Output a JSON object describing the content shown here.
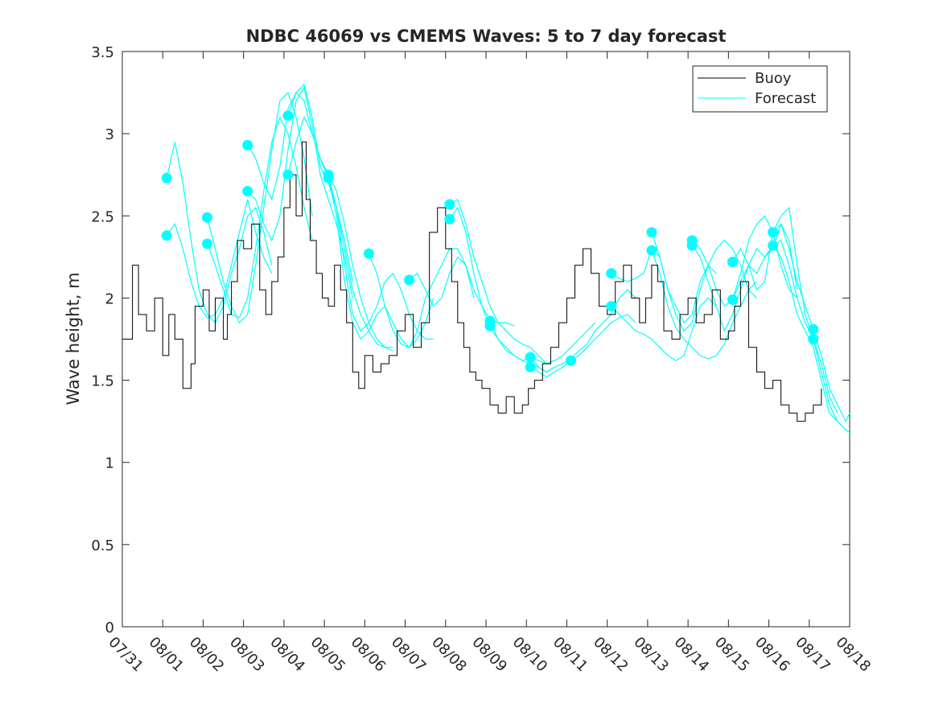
{
  "chart_data": {
    "type": "line",
    "title": "NDBC 46069 vs CMEMS Waves: 5 to 7 day forecast",
    "xlabel": "",
    "ylabel": "Wave height, m",
    "xlim": [
      0,
      18
    ],
    "ylim": [
      0,
      3.5
    ],
    "x_tick_values": [
      0,
      1,
      2,
      3,
      4,
      5,
      6,
      7,
      8,
      9,
      10,
      11,
      12,
      13,
      14,
      15,
      16,
      17,
      18
    ],
    "x_tick_labels": [
      "07/31",
      "08/01",
      "08/02",
      "08/03",
      "08/04",
      "08/05",
      "08/06",
      "08/07",
      "08/08",
      "08/09",
      "08/10",
      "08/11",
      "08/12",
      "08/13",
      "08/14",
      "08/15",
      "08/16",
      "08/17",
      "08/18"
    ],
    "y_tick_values": [
      0,
      0.5,
      1,
      1.5,
      2,
      2.5,
      3,
      3.5
    ],
    "y_tick_labels": [
      "0",
      "0.5",
      "1",
      "1.5",
      "2",
      "2.5",
      "3",
      "3.5"
    ],
    "legend": {
      "position": "top-right",
      "entries": [
        {
          "name": "Buoy",
          "color": "#000000"
        },
        {
          "name": "Forecast",
          "color": "#00ffff"
        }
      ]
    },
    "colors": {
      "buoy": "#000000",
      "forecast": "#00ffff",
      "axes": "#262626"
    },
    "buoy": {
      "name": "Buoy",
      "x": [
        0,
        0.25,
        0.4,
        0.6,
        0.8,
        1.0,
        1.15,
        1.3,
        1.5,
        1.7,
        1.8,
        2.0,
        2.15,
        2.3,
        2.5,
        2.6,
        2.7,
        2.85,
        3.0,
        3.2,
        3.4,
        3.55,
        3.7,
        3.85,
        4.0,
        4.15,
        4.3,
        4.45,
        4.55,
        4.65,
        4.8,
        4.95,
        5.1,
        5.25,
        5.4,
        5.55,
        5.7,
        5.85,
        6.0,
        6.2,
        6.4,
        6.6,
        6.8,
        7.0,
        7.2,
        7.4,
        7.6,
        7.8,
        8.0,
        8.15,
        8.3,
        8.45,
        8.6,
        8.75,
        8.9,
        9.1,
        9.3,
        9.5,
        9.7,
        9.9,
        10.05,
        10.2,
        10.4,
        10.6,
        10.8,
        11.0,
        11.2,
        11.4,
        11.6,
        11.8,
        12.0,
        12.2,
        12.4,
        12.6,
        12.8,
        12.95,
        13.1,
        13.25,
        13.4,
        13.6,
        13.8,
        14.0,
        14.2,
        14.4,
        14.6,
        14.8,
        15.0,
        15.15,
        15.3,
        15.5,
        15.7,
        15.9,
        16.1,
        16.3,
        16.5,
        16.7,
        16.9,
        17.1,
        17.3
      ],
      "y": [
        1.75,
        2.2,
        1.9,
        1.8,
        2.0,
        1.65,
        1.9,
        1.75,
        1.45,
        1.6,
        1.95,
        2.05,
        1.8,
        2.0,
        1.75,
        1.9,
        2.1,
        2.35,
        2.3,
        2.45,
        2.05,
        1.9,
        2.1,
        2.25,
        2.55,
        2.75,
        2.5,
        2.95,
        2.6,
        2.35,
        2.15,
        2.0,
        1.95,
        2.2,
        2.05,
        1.85,
        1.55,
        1.45,
        1.65,
        1.55,
        1.6,
        1.65,
        1.8,
        1.9,
        1.7,
        1.85,
        2.4,
        2.55,
        2.3,
        2.1,
        1.85,
        1.7,
        1.55,
        1.5,
        1.45,
        1.35,
        1.3,
        1.4,
        1.3,
        1.35,
        1.45,
        1.5,
        1.6,
        1.7,
        1.85,
        2.0,
        2.2,
        2.3,
        2.15,
        1.95,
        1.9,
        2.1,
        2.2,
        2.0,
        1.85,
        2.0,
        2.2,
        2.1,
        1.8,
        1.75,
        1.9,
        2.0,
        1.85,
        1.9,
        2.05,
        1.75,
        1.8,
        1.95,
        2.1,
        1.7,
        1.55,
        1.45,
        1.5,
        1.35,
        1.3,
        1.25,
        1.3,
        1.35,
        1.45
      ]
    },
    "forecast_series": [
      {
        "name": "Forecast",
        "x": [
          1.1,
          1.3,
          1.5,
          1.7,
          1.9,
          2.1,
          2.3,
          2.5,
          2.7,
          2.9,
          3.1,
          3.3,
          3.5,
          3.7
        ],
        "y": [
          2.73,
          2.95,
          2.7,
          2.35,
          2.05,
          1.9,
          1.85,
          1.95,
          2.15,
          2.3,
          2.5,
          2.55,
          2.4,
          2.2
        ]
      },
      {
        "name": "Forecast",
        "x": [
          1.1,
          1.3,
          1.5,
          1.7,
          1.9,
          2.1,
          2.3,
          2.5,
          2.7,
          2.9,
          3.1,
          3.3,
          3.5,
          3.7
        ],
        "y": [
          2.38,
          2.45,
          2.3,
          2.1,
          1.95,
          1.88,
          1.9,
          2.0,
          2.2,
          2.4,
          2.6,
          2.4,
          2.25,
          2.15
        ]
      },
      {
        "name": "Forecast",
        "x": [
          2.1,
          2.3,
          2.5,
          2.7,
          2.9,
          3.1,
          3.3,
          3.5,
          3.7,
          3.9,
          4.1,
          4.3,
          4.5,
          4.7
        ],
        "y": [
          2.49,
          2.3,
          2.1,
          1.95,
          1.85,
          1.9,
          2.2,
          2.55,
          2.9,
          3.2,
          3.25,
          3.1,
          2.85,
          2.5
        ]
      },
      {
        "name": "Forecast",
        "x": [
          2.1,
          2.3,
          2.5,
          2.7,
          2.9,
          3.1,
          3.3,
          3.5,
          3.7,
          3.9,
          4.1,
          4.3,
          4.5,
          4.7
        ],
        "y": [
          2.33,
          2.2,
          2.05,
          1.9,
          1.88,
          2.0,
          2.3,
          2.65,
          2.95,
          3.1,
          3.0,
          2.8,
          2.55,
          2.35
        ]
      },
      {
        "name": "Forecast",
        "x": [
          3.1,
          3.3,
          3.5,
          3.7,
          3.9,
          4.1,
          4.3,
          4.5,
          4.7,
          4.9,
          5.1,
          5.3,
          5.5,
          5.7
        ],
        "y": [
          2.93,
          2.85,
          2.7,
          2.6,
          2.8,
          3.15,
          3.25,
          3.3,
          3.1,
          2.8,
          2.7,
          2.55,
          2.35,
          2.1
        ]
      },
      {
        "name": "Forecast",
        "x": [
          3.1,
          3.3,
          3.5,
          3.7,
          3.9,
          4.1,
          4.3,
          4.5,
          4.7,
          4.9,
          5.1,
          5.3,
          5.5,
          5.7
        ],
        "y": [
          2.65,
          2.6,
          2.45,
          2.35,
          2.5,
          2.9,
          3.2,
          3.28,
          3.05,
          2.75,
          2.6,
          2.45,
          2.25,
          2.0
        ]
      },
      {
        "name": "Forecast",
        "x": [
          4.1,
          4.3,
          4.5,
          4.7,
          4.9,
          5.1,
          5.3,
          5.5,
          5.7,
          5.9,
          6.1,
          6.3,
          6.5,
          6.7
        ],
        "y": [
          3.11,
          3.25,
          3.2,
          3.0,
          2.85,
          2.75,
          2.65,
          2.45,
          2.2,
          2.0,
          1.85,
          1.75,
          1.7,
          1.68
        ]
      },
      {
        "name": "Forecast",
        "x": [
          4.1,
          4.3,
          4.5,
          4.7,
          4.9,
          5.1,
          5.3,
          5.5,
          5.7,
          5.9,
          6.1,
          6.3,
          6.5,
          6.7
        ],
        "y": [
          2.75,
          2.95,
          3.1,
          3.0,
          2.85,
          2.72,
          2.55,
          2.3,
          2.05,
          1.9,
          1.8,
          1.72,
          1.7,
          1.7
        ]
      },
      {
        "name": "Forecast",
        "x": [
          5.1,
          5.3,
          5.5,
          5.7,
          5.9,
          6.1,
          6.3,
          6.5,
          6.7,
          6.9,
          7.1,
          7.3,
          7.5,
          7.7
        ],
        "y": [
          2.75,
          2.55,
          2.2,
          1.9,
          1.8,
          1.85,
          1.95,
          2.1,
          2.15,
          2.05,
          1.9,
          1.8,
          1.75,
          1.75
        ]
      },
      {
        "name": "Forecast",
        "x": [
          5.1,
          5.3,
          5.5,
          5.7,
          5.9,
          6.1,
          6.3,
          6.5,
          6.7,
          6.9,
          7.1,
          7.3,
          7.5,
          7.7
        ],
        "y": [
          2.73,
          2.5,
          2.1,
          1.85,
          1.75,
          1.8,
          1.9,
          1.95,
          1.85,
          1.75,
          1.7,
          1.75,
          1.85,
          2.0
        ]
      },
      {
        "name": "Forecast",
        "x": [
          6.1,
          6.3,
          6.5,
          6.7,
          6.9,
          7.1,
          7.3,
          7.5,
          7.7,
          7.9,
          8.1,
          8.3,
          8.5,
          8.7
        ],
        "y": [
          2.27,
          2.15,
          1.95,
          1.8,
          1.72,
          1.7,
          1.8,
          2.0,
          2.1,
          2.2,
          2.3,
          2.3,
          2.2,
          2.0
        ]
      },
      {
        "name": "Forecast",
        "x": [
          7.1,
          7.3,
          7.5,
          7.7,
          7.9,
          8.1,
          8.3,
          8.5,
          8.7,
          8.9,
          9.1,
          9.3,
          9.5,
          9.7
        ],
        "y": [
          2.11,
          2.15,
          2.05,
          1.95,
          2.0,
          2.15,
          2.25,
          2.2,
          2.05,
          1.95,
          1.87,
          1.85,
          1.85,
          1.83
        ]
      },
      {
        "name": "Forecast",
        "x": [
          8.1,
          8.3,
          8.5,
          8.7,
          8.9,
          9.1,
          9.3,
          9.5,
          9.7,
          9.9,
          10.1,
          10.3,
          10.5,
          10.7
        ],
        "y": [
          2.57,
          2.6,
          2.45,
          2.25,
          2.1,
          1.95,
          1.85,
          1.8,
          1.75,
          1.72,
          1.7,
          1.65,
          1.6,
          1.62
        ]
      },
      {
        "name": "Forecast",
        "x": [
          8.1,
          8.3,
          8.5,
          8.7,
          8.9,
          9.1,
          9.3,
          9.5,
          9.7,
          9.9,
          10.1,
          10.3,
          10.5,
          10.7
        ],
        "y": [
          2.48,
          2.55,
          2.4,
          2.15,
          1.95,
          1.82,
          1.75,
          1.7,
          1.65,
          1.62,
          1.6,
          1.58,
          1.55,
          1.58
        ]
      },
      {
        "name": "Forecast",
        "x": [
          9.1,
          9.3,
          9.5,
          9.7,
          9.9,
          10.1,
          10.3,
          10.5,
          10.7,
          10.9,
          11.1,
          11.3,
          11.5,
          11.7
        ],
        "y": [
          1.86,
          1.75,
          1.68,
          1.65,
          1.62,
          1.64,
          1.62,
          1.6,
          1.62,
          1.65,
          1.7,
          1.75,
          1.8,
          1.85
        ]
      },
      {
        "name": "Forecast",
        "x": [
          10.1,
          10.3,
          10.5,
          10.7,
          10.9,
          11.1,
          11.3,
          11.5,
          11.7,
          11.9,
          12.1,
          12.3,
          12.5,
          12.7
        ],
        "y": [
          1.64,
          1.58,
          1.55,
          1.58,
          1.6,
          1.63,
          1.68,
          1.72,
          1.8,
          1.85,
          1.9,
          2.0,
          2.05,
          2.0
        ]
      },
      {
        "name": "Forecast",
        "x": [
          10.1,
          10.3,
          10.5,
          10.7,
          10.9,
          11.1,
          11.3,
          11.5,
          11.7,
          11.9,
          12.1,
          12.3,
          12.5,
          12.7
        ],
        "y": [
          1.58,
          1.55,
          1.52,
          1.55,
          1.58,
          1.62,
          1.65,
          1.7,
          1.75,
          1.8,
          1.85,
          1.88,
          1.9,
          1.85
        ]
      },
      {
        "name": "Forecast",
        "x": [
          12.1,
          12.3,
          12.5,
          12.7,
          12.9,
          13.1,
          13.3,
          13.5,
          13.7,
          13.9,
          14.1,
          14.3,
          14.5,
          14.7
        ],
        "y": [
          2.15,
          2.12,
          2.1,
          2.12,
          2.15,
          2.3,
          2.25,
          2.05,
          1.95,
          1.85,
          1.9,
          2.1,
          2.2,
          2.15
        ]
      },
      {
        "name": "Forecast",
        "x": [
          12.1,
          12.3,
          12.5,
          12.7,
          12.9,
          13.1,
          13.3,
          13.5,
          13.7,
          13.9,
          14.1,
          14.3,
          14.5,
          14.7
        ],
        "y": [
          1.95,
          1.9,
          1.85,
          1.8,
          1.78,
          1.75,
          1.7,
          1.65,
          1.62,
          1.65,
          1.8,
          1.95,
          2.0,
          1.95
        ]
      },
      {
        "name": "Forecast",
        "x": [
          13.1,
          13.3,
          13.5,
          13.7,
          13.9,
          14.1,
          14.3,
          14.5,
          14.7,
          14.9,
          15.1,
          15.3,
          15.5,
          15.7
        ],
        "y": [
          2.4,
          2.25,
          2.05,
          1.9,
          1.8,
          1.85,
          2.05,
          2.2,
          2.3,
          2.35,
          2.3,
          2.2,
          2.05,
          2.0
        ]
      },
      {
        "name": "Forecast",
        "x": [
          13.1,
          13.3,
          13.5,
          13.7,
          13.9,
          14.1,
          14.3,
          14.5,
          14.7,
          14.9,
          15.1,
          15.3,
          15.5,
          15.7
        ],
        "y": [
          2.29,
          2.15,
          1.95,
          1.82,
          1.75,
          1.7,
          1.65,
          1.63,
          1.65,
          1.72,
          1.85,
          1.95,
          2.05,
          2.1
        ]
      },
      {
        "name": "Forecast",
        "x": [
          14.1,
          14.3,
          14.5,
          14.7,
          14.9,
          15.1,
          15.3,
          15.5,
          15.7,
          15.9,
          16.1,
          16.3,
          16.5,
          16.7
        ],
        "y": [
          2.35,
          2.3,
          2.2,
          2.05,
          1.95,
          1.99,
          2.15,
          2.35,
          2.45,
          2.5,
          2.4,
          2.2,
          2.05,
          2.0
        ]
      },
      {
        "name": "Forecast",
        "x": [
          14.1,
          14.3,
          14.5,
          14.7,
          14.9,
          15.1,
          15.3,
          15.5,
          15.7,
          15.9,
          16.1,
          16.3,
          16.5,
          16.7
        ],
        "y": [
          2.32,
          2.25,
          2.1,
          1.95,
          1.8,
          1.9,
          2.05,
          2.2,
          2.3,
          2.25,
          2.3,
          2.45,
          2.35,
          2.05
        ]
      },
      {
        "name": "Forecast",
        "x": [
          15.1,
          15.3,
          15.5,
          15.7,
          15.9,
          16.1,
          16.3,
          16.5,
          16.7,
          16.9,
          17.1,
          17.3,
          17.5,
          17.7
        ],
        "y": [
          2.22,
          2.3,
          2.2,
          2.05,
          2.1,
          2.4,
          2.5,
          2.55,
          2.2,
          1.9,
          1.75,
          1.6,
          1.4,
          1.3
        ]
      },
      {
        "name": "Forecast",
        "x": [
          15.1,
          15.3,
          15.5,
          15.7,
          15.9,
          16.1,
          16.3,
          16.5,
          16.7,
          16.9,
          17.1,
          17.3,
          17.5,
          17.7
        ],
        "y": [
          1.99,
          2.1,
          2.2,
          2.15,
          2.25,
          2.32,
          2.25,
          2.1,
          1.9,
          1.8,
          1.7,
          1.5,
          1.3,
          1.25
        ]
      },
      {
        "name": "Forecast",
        "x": [
          16.1,
          16.3,
          16.5,
          16.7,
          16.9,
          17.1,
          17.3,
          17.5,
          17.7,
          17.9,
          18.0
        ],
        "y": [
          2.4,
          2.45,
          2.3,
          2.1,
          1.95,
          1.81,
          1.65,
          1.45,
          1.35,
          1.25,
          1.3
        ]
      },
      {
        "name": "Forecast",
        "x": [
          16.1,
          16.3,
          16.5,
          16.7,
          16.9,
          17.1,
          17.3,
          17.5,
          17.7,
          17.9,
          18.0
        ],
        "y": [
          2.32,
          2.35,
          2.2,
          2.0,
          1.85,
          1.75,
          1.55,
          1.35,
          1.25,
          1.2,
          1.18
        ]
      }
    ],
    "forecast_markers": {
      "x": [
        1.1,
        1.1,
        2.1,
        2.1,
        3.1,
        3.1,
        4.1,
        4.1,
        5.1,
        5.1,
        6.1,
        7.1,
        8.1,
        8.1,
        9.1,
        9.1,
        10.1,
        10.1,
        11.1,
        12.1,
        12.1,
        13.1,
        13.1,
        14.1,
        14.1,
        15.1,
        15.1,
        16.1,
        16.1,
        17.1,
        17.1
      ],
      "y": [
        2.73,
        2.38,
        2.49,
        2.33,
        2.93,
        2.65,
        3.11,
        2.75,
        2.75,
        2.73,
        2.27,
        2.11,
        2.57,
        2.48,
        1.86,
        1.83,
        1.64,
        1.58,
        1.62,
        2.15,
        1.95,
        2.4,
        2.29,
        2.35,
        2.32,
        2.22,
        1.99,
        2.4,
        2.32,
        1.81,
        1.75
      ]
    }
  }
}
